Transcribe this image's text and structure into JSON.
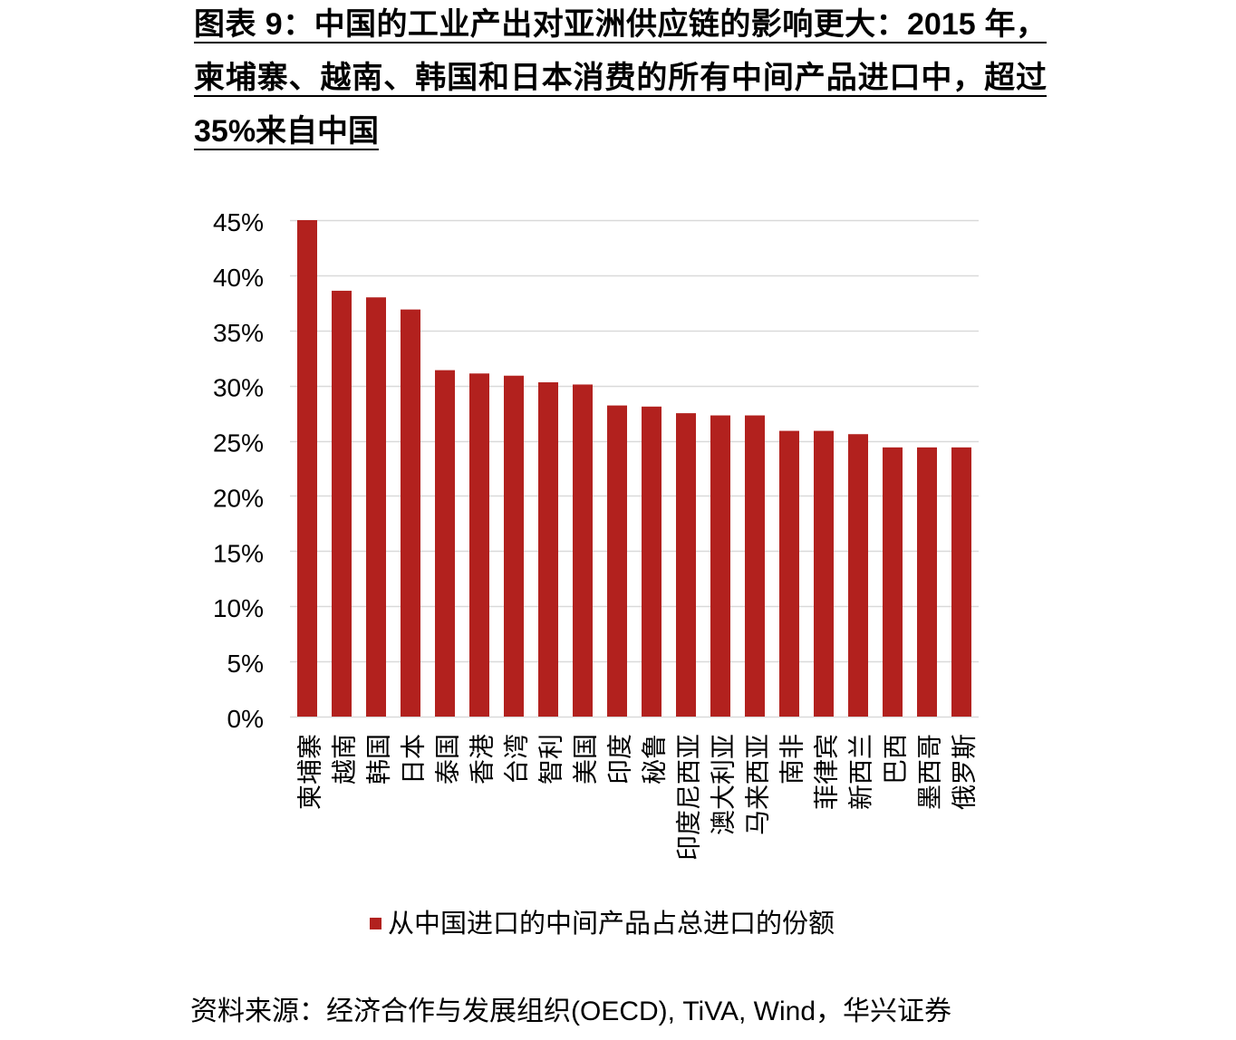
{
  "chart_data": {
    "type": "bar",
    "title_lines": [
      "图表 9：中国的工业产出对亚洲供应链的影响更大：2015 年，",
      "柬埔寨、越南、韩国和日本消费的所有中间产品进口中，超过",
      "35%来自中国"
    ],
    "categories": [
      "柬埔寨",
      "越南",
      "韩国",
      "日本",
      "泰国",
      "香港",
      "台湾",
      "智利",
      "美国",
      "印度",
      "秘鲁",
      "印度尼西亚",
      "澳大利亚",
      "马来西亚",
      "南非",
      "菲律宾",
      "新西兰",
      "巴西",
      "墨西哥",
      "俄罗斯"
    ],
    "series": [
      {
        "name": "从中国进口的中间产品占总进口的份额",
        "color": "#b2211e",
        "values": [
          45.0,
          38.6,
          38.0,
          36.9,
          31.4,
          31.1,
          30.9,
          30.3,
          30.1,
          28.2,
          28.1,
          27.5,
          27.3,
          27.3,
          25.9,
          25.9,
          25.6,
          24.4,
          24.4,
          24.4
        ]
      }
    ],
    "ylim": [
      0,
      45
    ],
    "y_ticks": [
      0,
      5,
      10,
      15,
      20,
      25,
      30,
      35,
      40,
      45
    ],
    "y_tick_labels": [
      "0%",
      "5%",
      "10%",
      "15%",
      "20%",
      "25%",
      "30%",
      "35%",
      "40%",
      "45%"
    ],
    "grid": true,
    "legend": "bottom"
  },
  "source": "资料来源：经济合作与发展组织(OECD), TiVA, Wind，华兴证券",
  "colors": {
    "grid": "#d9d9d9",
    "text": "#000000",
    "background": "#ffffff"
  }
}
